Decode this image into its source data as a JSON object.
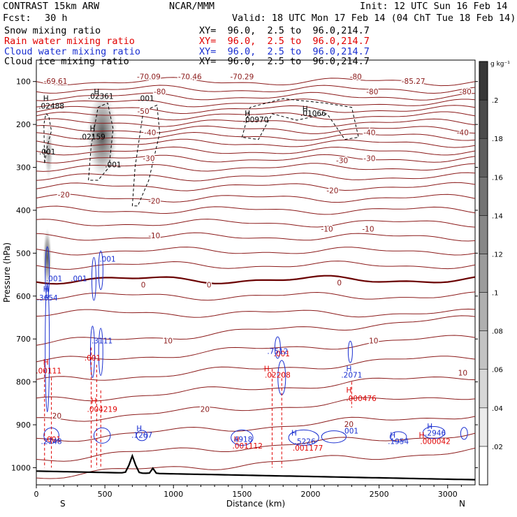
{
  "header": {
    "model": "CONTRAST 15km ARW",
    "org": "NCAR/MMM",
    "init": "Init: 12 UTC Sun 16 Feb 14",
    "fcst_label": "Fcst:",
    "fcst_value": "30 h",
    "valid": "Valid: 18 UTC Mon 17 Feb 14 (04 ChT Tue 18 Feb 14)"
  },
  "fields": [
    {
      "name": "Snow mixing ratio",
      "color": "#000000",
      "xy": "XY=  96.0,  2.5 to  96.0,214.7"
    },
    {
      "name": "Rain water mixing ratio",
      "color": "#e00000",
      "xy": "XY=  96.0,  2.5 to  96.0,214.7"
    },
    {
      "name": "Cloud water mixing ratio",
      "color": "#1a2fd0",
      "xy": "XY=  96.0,  2.5 to  96.0,214.7"
    },
    {
      "name": "Cloud ice mixing ratio",
      "color": "#000000",
      "xy": "XY=  96.0,  2.5 to  96.0,214.7"
    }
  ],
  "chart_data": {
    "type": "contour-cross-section",
    "xlabel": "Distance (km)",
    "ylabel": "Pressure (hPa)",
    "xlim": [
      0,
      3200
    ],
    "ylim": [
      1040,
      50
    ],
    "x_ticks": [
      0,
      500,
      1000,
      1500,
      2000,
      2500,
      3000
    ],
    "y_ticks": [
      100,
      200,
      300,
      400,
      500,
      600,
      700,
      800,
      900,
      1000
    ],
    "x_end_labels": {
      "left": "S",
      "right": "N"
    },
    "colorbar": {
      "unit": "g kg⁻¹",
      "ticks": [
        ".02",
        ".04",
        ".06",
        ".08",
        ".1",
        ".12",
        ".14",
        ".16",
        ".18",
        ".2"
      ],
      "range": [
        0,
        0.22
      ]
    },
    "temperature_labels": [
      {
        "x": 140,
        "p": 105,
        "text": "-69.61"
      },
      {
        "x": 820,
        "p": 95,
        "text": "-70.09"
      },
      {
        "x": 1120,
        "p": 95,
        "text": "-70.46"
      },
      {
        "x": 1500,
        "p": 95,
        "text": "-70.29"
      },
      {
        "x": 2330,
        "p": 95,
        "text": "-80"
      },
      {
        "x": 2750,
        "p": 105,
        "text": "-85.27"
      },
      {
        "x": 900,
        "p": 130,
        "text": "-80"
      },
      {
        "x": 2450,
        "p": 130,
        "text": "-80"
      },
      {
        "x": 3130,
        "p": 130,
        "text": "-80"
      },
      {
        "x": 780,
        "p": 175,
        "text": "-50"
      },
      {
        "x": 830,
        "p": 225,
        "text": "-40"
      },
      {
        "x": 2430,
        "p": 225,
        "text": "-40"
      },
      {
        "x": 3110,
        "p": 225,
        "text": "-40"
      },
      {
        "x": 820,
        "p": 285,
        "text": "-30"
      },
      {
        "x": 2230,
        "p": 290,
        "text": "-30"
      },
      {
        "x": 2430,
        "p": 285,
        "text": "-30"
      },
      {
        "x": 200,
        "p": 370,
        "text": "-20"
      },
      {
        "x": 860,
        "p": 385,
        "text": "-20"
      },
      {
        "x": 2160,
        "p": 360,
        "text": "-20"
      },
      {
        "x": 860,
        "p": 465,
        "text": "-10"
      },
      {
        "x": 2120,
        "p": 450,
        "text": "-10"
      },
      {
        "x": 2420,
        "p": 450,
        "text": "-10"
      },
      {
        "x": 780,
        "p": 580,
        "text": "0"
      },
      {
        "x": 1260,
        "p": 580,
        "text": "0"
      },
      {
        "x": 2210,
        "p": 575,
        "text": "0"
      },
      {
        "x": 960,
        "p": 710,
        "text": "10"
      },
      {
        "x": 2460,
        "p": 710,
        "text": "10"
      },
      {
        "x": 3110,
        "p": 785,
        "text": "10"
      },
      {
        "x": 150,
        "p": 885,
        "text": "20"
      },
      {
        "x": 1230,
        "p": 870,
        "text": "20"
      },
      {
        "x": 2280,
        "p": 905,
        "text": "20"
      }
    ],
    "snow_labels": [
      {
        "x": 70,
        "p": 145,
        "text": "H"
      },
      {
        "x": 110,
        "p": 163,
        "text": ".02488"
      },
      {
        "x": 440,
        "p": 130,
        "text": "H"
      },
      {
        "x": 470,
        "p": 140,
        "text": ".02361"
      },
      {
        "x": 410,
        "p": 215,
        "text": "H"
      },
      {
        "x": 410,
        "p": 235,
        "text": ".02159"
      },
      {
        "x": 80,
        "p": 270,
        "text": ".001"
      },
      {
        "x": 800,
        "p": 145,
        "text": ".001"
      },
      {
        "x": 560,
        "p": 300,
        "text": ".001"
      },
      {
        "x": 1540,
        "p": 180,
        "text": "H"
      },
      {
        "x": 1600,
        "p": 195,
        "text": ".00970"
      },
      {
        "x": 1960,
        "p": 170,
        "text": "H"
      },
      {
        "x": 2020,
        "p": 180,
        "text": ".01066"
      }
    ],
    "rain_labels": [
      {
        "x": 70,
        "p": 760,
        "text": "H"
      },
      {
        "x": 90,
        "p": 780,
        "text": ".00111"
      },
      {
        "x": 410,
        "p": 750,
        "text": ".001"
      },
      {
        "x": 420,
        "p": 850,
        "text": "H"
      },
      {
        "x": 480,
        "p": 870,
        "text": ".004219"
      },
      {
        "x": 120,
        "p": 940,
        "text": ".001"
      },
      {
        "x": 1680,
        "p": 775,
        "text": "H"
      },
      {
        "x": 1760,
        "p": 790,
        "text": ".02208"
      },
      {
        "x": 1790,
        "p": 740,
        "text": ".001"
      },
      {
        "x": 1460,
        "p": 940,
        "text": "H"
      },
      {
        "x": 1540,
        "p": 955,
        "text": ".001112"
      },
      {
        "x": 1980,
        "p": 960,
        "text": ".001177"
      },
      {
        "x": 2280,
        "p": 825,
        "text": "H"
      },
      {
        "x": 2370,
        "p": 845,
        "text": ".000476"
      },
      {
        "x": 2810,
        "p": 930,
        "text": "H"
      },
      {
        "x": 2910,
        "p": 945,
        "text": ".000042"
      }
    ],
    "cloud_water_labels": [
      {
        "x": 70,
        "p": 590,
        "text": "H"
      },
      {
        "x": 130,
        "p": 565,
        "text": ".001"
      },
      {
        "x": 80,
        "p": 610,
        "text": ".3654"
      },
      {
        "x": 310,
        "p": 565,
        "text": ".001"
      },
      {
        "x": 520,
        "p": 520,
        "text": ".001"
      },
      {
        "x": 480,
        "p": 710,
        "text": ".3111"
      },
      {
        "x": 1760,
        "p": 735,
        "text": ".7512"
      },
      {
        "x": 2280,
        "p": 775,
        "text": "H"
      },
      {
        "x": 2300,
        "p": 790,
        "text": ".2071"
      },
      {
        "x": 110,
        "p": 945,
        "text": ".2748"
      },
      {
        "x": 750,
        "p": 915,
        "text": "H"
      },
      {
        "x": 770,
        "p": 930,
        "text": ".1267"
      },
      {
        "x": 1500,
        "p": 940,
        "text": ".4918"
      },
      {
        "x": 1880,
        "p": 925,
        "text": "H"
      },
      {
        "x": 1960,
        "p": 945,
        "text": ".5226"
      },
      {
        "x": 2290,
        "p": 920,
        "text": ".001"
      },
      {
        "x": 2600,
        "p": 930,
        "text": "H"
      },
      {
        "x": 2640,
        "p": 945,
        "text": ".1954"
      },
      {
        "x": 2870,
        "p": 910,
        "text": "H"
      },
      {
        "x": 2910,
        "p": 925,
        "text": ".2946"
      }
    ]
  }
}
